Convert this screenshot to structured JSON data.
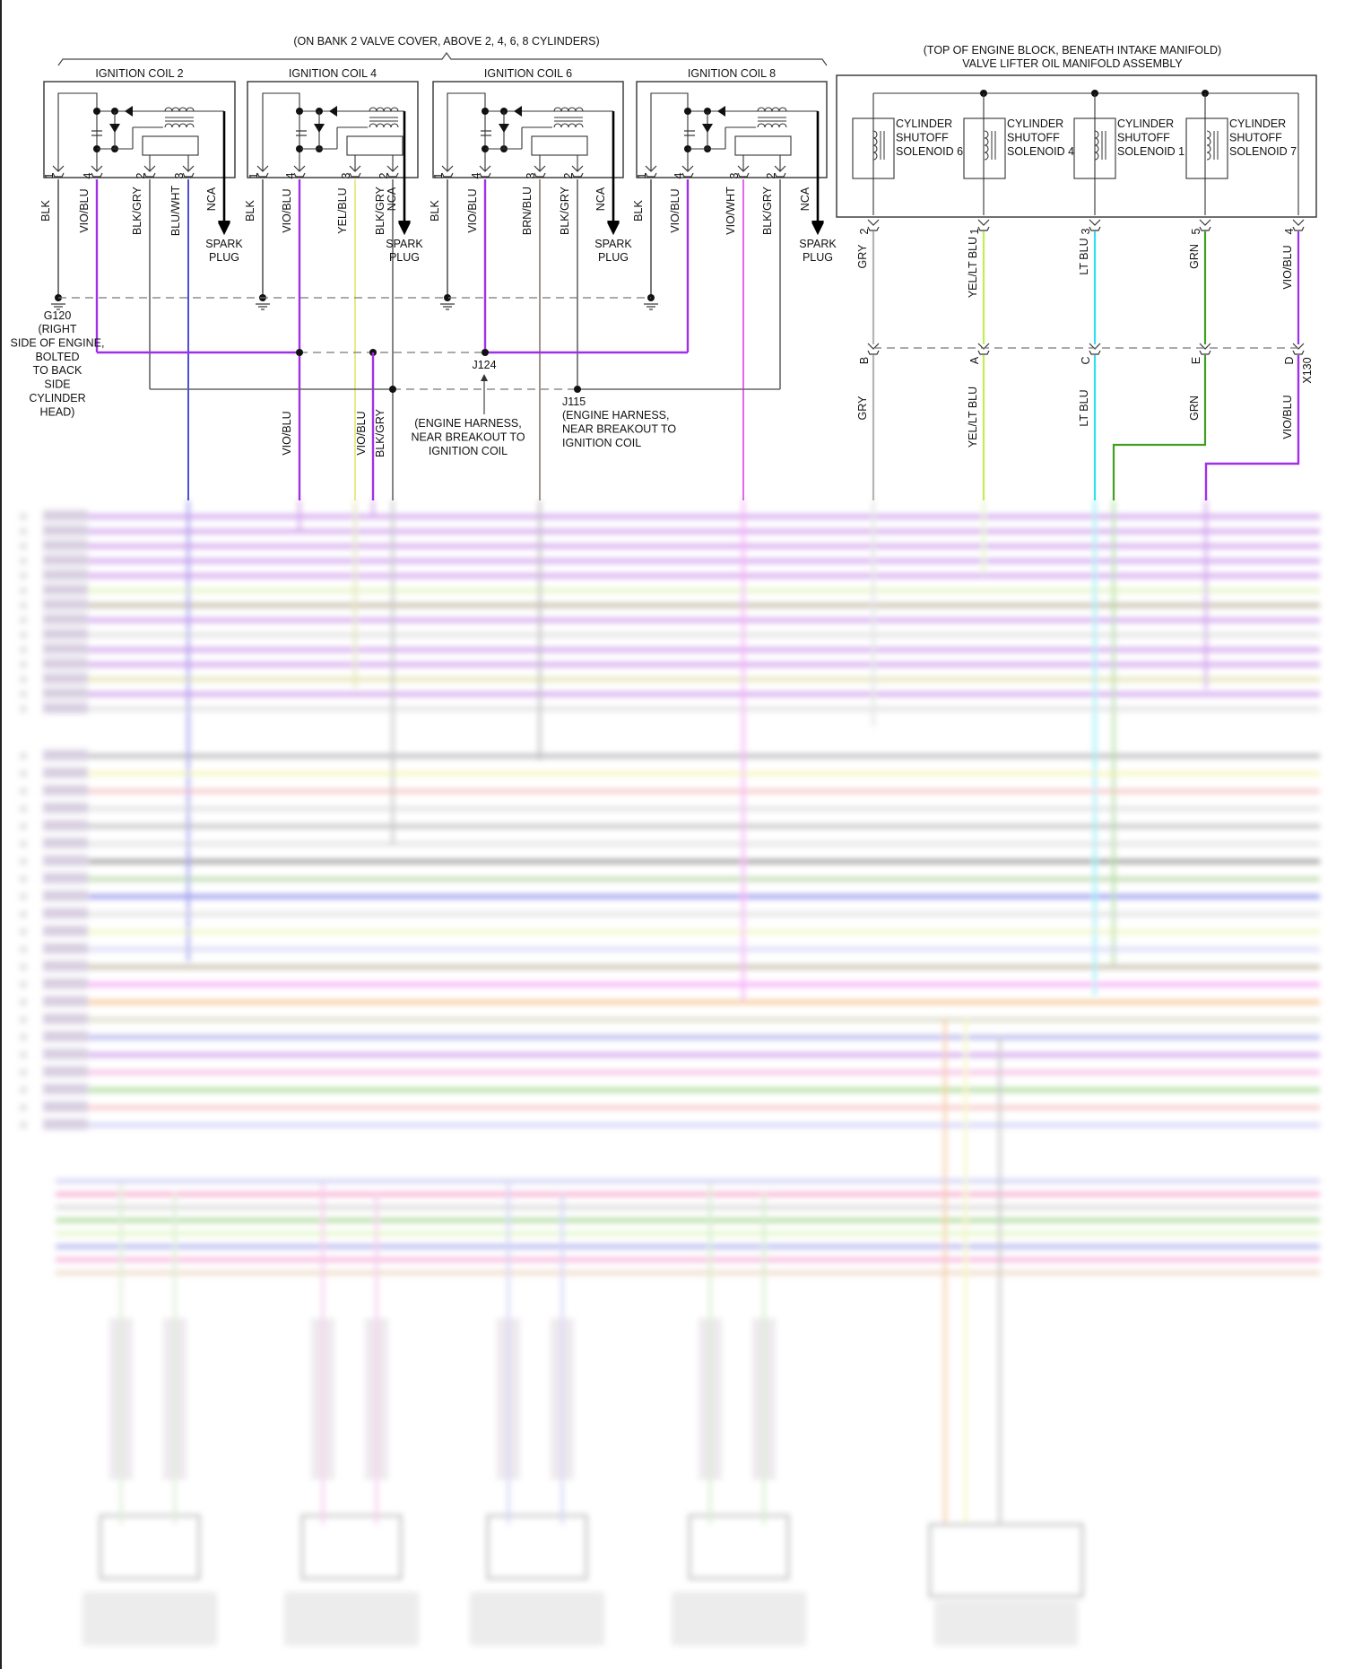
{
  "bank_note": "(ON BANK 2 VALVE COVER, ABOVE 2, 4, 6, 8 CYLINDERS)",
  "colors": {
    "BLK": "#555555",
    "VIO/BLU": "#a030e8",
    "BLK/GRY": "#666666",
    "BLU/WHT": "#2222d0",
    "YEL/BLU": "#e4e46a",
    "BRN/BLU": "#8a7a6a",
    "VIO/WHT": "#e040e8",
    "NCA": "#000000",
    "GRY": "#b4b4b4",
    "YEL/LT BLU": "#c4ec5a",
    "LT BLU": "#30e0f0",
    "GRN": "#40a020"
  },
  "coils": [
    {
      "label": "IGNITION COIL 2",
      "pins": [
        {
          "num": "1",
          "wire": "BLK"
        },
        {
          "num": "4",
          "wire": "VIO/BLU"
        },
        {
          "num": "2",
          "wire": "BLK/GRY"
        },
        {
          "num": "3",
          "wire": "BLU/WHT"
        }
      ],
      "nca": "NCA",
      "plug": [
        "SPARK",
        "PLUG"
      ]
    },
    {
      "label": "IGNITION COIL 4",
      "pins": [
        {
          "num": "1",
          "wire": "BLK"
        },
        {
          "num": "4",
          "wire": "VIO/BLU"
        },
        {
          "num": "3",
          "wire": "YEL/BLU"
        },
        {
          "num": "2",
          "wire": "BLK/GRY"
        }
      ],
      "nca": "NCA",
      "plug": [
        "SPARK",
        "PLUG"
      ]
    },
    {
      "label": "IGNITION COIL 6",
      "pins": [
        {
          "num": "1",
          "wire": "BLK"
        },
        {
          "num": "4",
          "wire": "VIO/BLU"
        },
        {
          "num": "3",
          "wire": "BRN/BLU"
        },
        {
          "num": "2",
          "wire": "BLK/GRY"
        }
      ],
      "nca": "NCA",
      "plug": [
        "SPARK",
        "PLUG"
      ]
    },
    {
      "label": "IGNITION COIL 8",
      "pins": [
        {
          "num": "1",
          "wire": "BLK"
        },
        {
          "num": "4",
          "wire": "VIO/BLU"
        },
        {
          "num": "3",
          "wire": "VIO/WHT"
        },
        {
          "num": "2",
          "wire": "BLK/GRY"
        }
      ],
      "nca": "NCA",
      "plug": [
        "SPARK",
        "PLUG"
      ]
    }
  ],
  "ground": {
    "id": "G120",
    "note": [
      "(RIGHT",
      "SIDE OF ENGINE,",
      "BOLTED",
      "TO BACK",
      "SIDE",
      "CYLINDER",
      "HEAD)"
    ]
  },
  "splices": {
    "j124": {
      "id": "J124",
      "note": [
        "(ENGINE HARNESS,",
        "NEAR BREAKOUT TO",
        "IGNITION COIL"
      ]
    },
    "j115": {
      "id": "J115",
      "note": [
        "(ENGINE HARNESS,",
        "NEAR BREAKOUT TO",
        "IGNITION COIL"
      ]
    }
  },
  "lower_wire_labels": [
    "VIO/BLU",
    "VIO/BLU",
    "BLK/GRY"
  ],
  "manifold": {
    "location": "(TOP OF ENGINE BLOCK, BENEATH INTAKE MANIFOLD)",
    "title": "VALVE LIFTER OIL MANIFOLD ASSEMBLY",
    "solenoids": [
      {
        "lines": [
          "CYLINDER",
          "SHUTOFF",
          "SOLENOID 6"
        ]
      },
      {
        "lines": [
          "CYLINDER",
          "SHUTOFF",
          "SOLENOID 4"
        ]
      },
      {
        "lines": [
          "CYLINDER",
          "SHUTOFF",
          "SOLENOID 1"
        ]
      },
      {
        "lines": [
          "CYLINDER",
          "SHUTOFF",
          "SOLENOID 7"
        ]
      }
    ],
    "pins": [
      {
        "num": "2",
        "wire": "GRY",
        "x130": "B"
      },
      {
        "num": "1",
        "wire": "YEL/LT BLU",
        "x130": "A"
      },
      {
        "num": "3",
        "wire": "LT BLU",
        "x130": "C"
      },
      {
        "num": "5",
        "wire": "GRN",
        "x130": "E"
      },
      {
        "num": "4",
        "wire": "VIO/BLU",
        "x130": "D"
      }
    ],
    "connector": "X130"
  },
  "blurred_wire_colors": [
    "#b060e0",
    "#b060e0",
    "#b060e0",
    "#b060e0",
    "#b060e0",
    "#d0ec9a",
    "#9a8a6a",
    "#b060e0",
    "#cccccc",
    "#b060e0",
    "#b060e0",
    "#d0d080",
    "#b060e0",
    "#cccccc",
    "#888888",
    "#f0f090",
    "#f0a0a0",
    "#cccccc",
    "#999999",
    "#cccccc",
    "#555555",
    "#90c070",
    "#5050e0",
    "#cccccc",
    "#e8f0a0",
    "#c0c0f0",
    "#a09070",
    "#f070f0",
    "#f0a050",
    "#c0c0a0",
    "#8080e0",
    "#b060e0",
    "#f090d0",
    "#70c050",
    "#f0a0a0",
    "#b0b0f0",
    "#b0b0f0",
    "#f070b0",
    "#c0c0c0",
    "#70c050",
    "#d0f0a0",
    "#8080e0",
    "#f080c0",
    "#e0c0a0"
  ]
}
